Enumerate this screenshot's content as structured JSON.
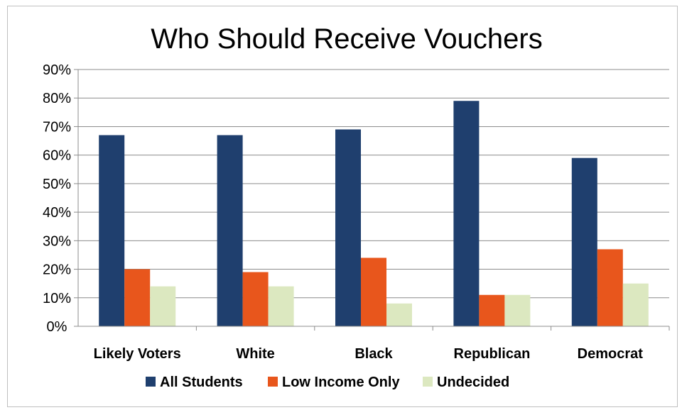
{
  "chart_data": {
    "type": "bar",
    "title": "Who Should Receive Vouchers",
    "categories": [
      "Likely Voters",
      "White",
      "Black",
      "Republican",
      "Democrat"
    ],
    "series": [
      {
        "name": "All Students",
        "values": [
          67,
          67,
          69,
          79,
          59
        ],
        "color": "#1f3f6e"
      },
      {
        "name": "Low Income Only",
        "values": [
          20,
          19,
          24,
          11,
          27
        ],
        "color": "#e8561c"
      },
      {
        "name": "Undecided",
        "values": [
          14,
          14,
          8,
          11,
          15
        ],
        "color": "#dce8c0"
      }
    ],
    "ylim": [
      0,
      90
    ],
    "yticks": [
      "0%",
      "10%",
      "20%",
      "30%",
      "40%",
      "50%",
      "60%",
      "70%",
      "80%",
      "90%"
    ],
    "grid": true,
    "legend_position": "bottom"
  }
}
